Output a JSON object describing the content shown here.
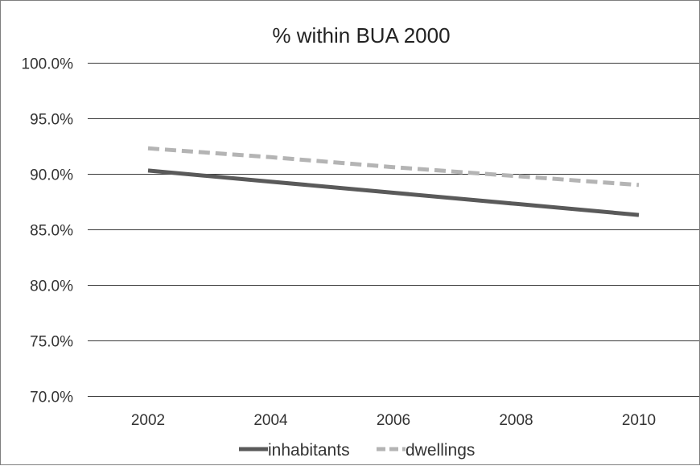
{
  "chart_data": {
    "type": "line",
    "title": "% within BUA 2000",
    "x": [
      2002,
      2004,
      2006,
      2008,
      2010
    ],
    "x_tick_labels": [
      "2002",
      "2004",
      "2006",
      "2008",
      "2010"
    ],
    "ylim": [
      70,
      100
    ],
    "y_tick_values": [
      70,
      75,
      80,
      85,
      90,
      95,
      100
    ],
    "y_tick_labels": [
      "70.0%",
      "75.0%",
      "80.0%",
      "85.0%",
      "90.0%",
      "95.0%",
      "100.0%"
    ],
    "grid": true,
    "legend_position": "bottom",
    "series": [
      {
        "name": "inhabitants",
        "values": [
          90.3,
          89.3,
          88.3,
          87.3,
          86.3
        ],
        "color": "#5a5a5a",
        "style": "solid"
      },
      {
        "name": "dwellings",
        "values": [
          92.3,
          91.5,
          90.6,
          89.8,
          89.0
        ],
        "color": "#b4b4b4",
        "style": "dashed"
      }
    ]
  }
}
